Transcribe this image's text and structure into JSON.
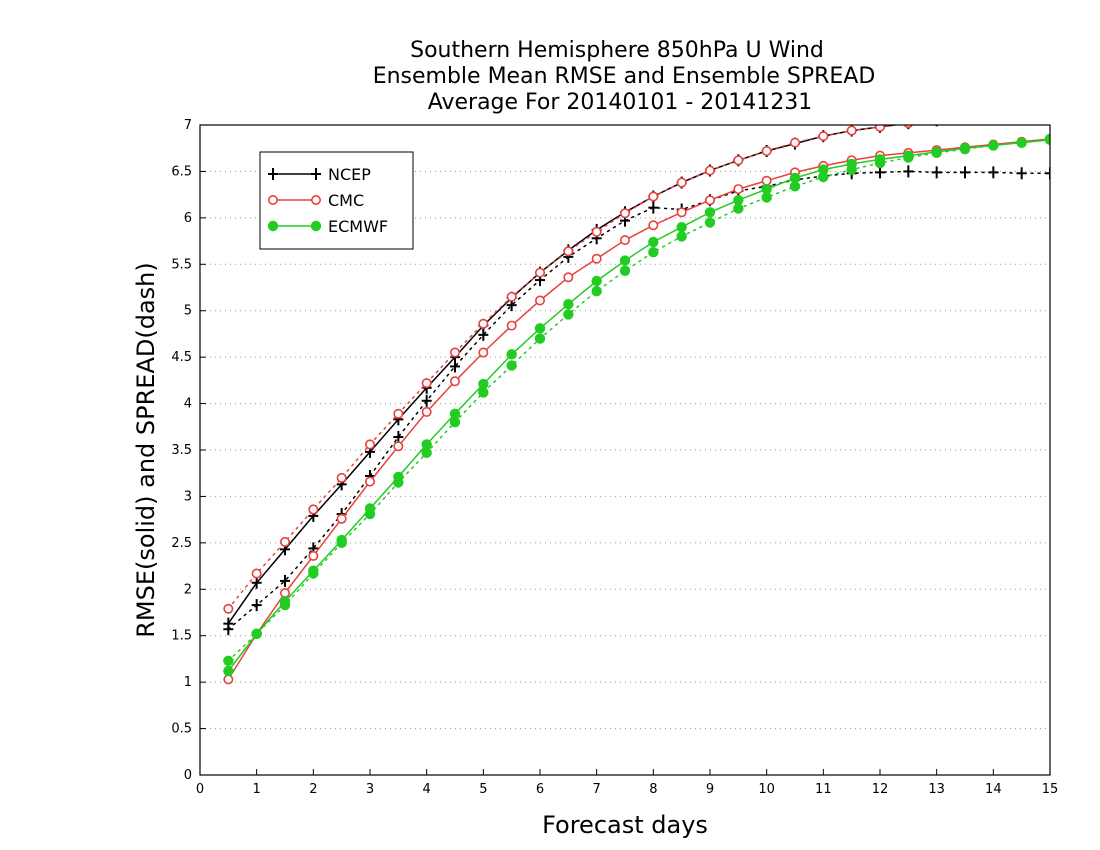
{
  "chart_data": {
    "type": "line",
    "title_lines": [
      "Southern Hemisphere 850hPa U Wind",
      "Ensemble Mean RMSE and Ensemble SPREAD",
      "Average For 20140101 - 20141231"
    ],
    "xlabel": "Forecast days",
    "ylabel": "RMSE(solid) and SPREAD(dash)",
    "xlim": [
      0,
      15
    ],
    "ylim": [
      0,
      7
    ],
    "x_ticks": [
      "0",
      "1",
      "2",
      "3",
      "4",
      "5",
      "6",
      "7",
      "8",
      "9",
      "10",
      "11",
      "12",
      "13",
      "14",
      "15"
    ],
    "y_ticks": [
      "0",
      "0.5",
      "1",
      "1.5",
      "2",
      "2.5",
      "3",
      "3.5",
      "4",
      "4.5",
      "5",
      "5.5",
      "6",
      "6.5",
      "7"
    ],
    "grid": "horizontal dotted",
    "legend_position": "top-left",
    "x": [
      0.5,
      1,
      1.5,
      2,
      2.5,
      3,
      3.5,
      4,
      4.5,
      5,
      5.5,
      6,
      6.5,
      7,
      7.5,
      8,
      8.5,
      9,
      9.5,
      10,
      10.5,
      11,
      11.5,
      12,
      12.5,
      13,
      13.5,
      14,
      14.5,
      15
    ],
    "series": [
      {
        "name": "NCEP",
        "color": "#000000",
        "marker": "plus",
        "rmse": [
          1.63,
          2.07,
          2.43,
          2.79,
          3.13,
          3.48,
          3.83,
          4.17,
          4.5,
          4.84,
          5.14,
          5.41,
          5.65,
          5.87,
          6.06,
          6.23,
          6.38,
          6.51,
          6.62,
          6.72,
          6.8,
          6.88,
          6.94,
          6.98,
          7.02,
          7.05,
          7.08,
          7.1,
          7.12,
          7.14
        ],
        "spread": [
          1.57,
          1.83,
          2.09,
          2.44,
          2.81,
          3.22,
          3.64,
          4.03,
          4.4,
          4.74,
          5.06,
          5.33,
          5.58,
          5.78,
          5.97,
          6.11,
          6.09,
          6.19,
          6.29,
          6.34,
          6.41,
          6.45,
          6.48,
          6.49,
          6.5,
          6.49,
          6.49,
          6.49,
          6.48,
          6.48
        ]
      },
      {
        "name": "CMC",
        "color": "#e8403d",
        "marker": "open-circle",
        "rmse": [
          1.03,
          1.52,
          1.96,
          2.36,
          2.76,
          3.16,
          3.54,
          3.91,
          4.24,
          4.55,
          4.84,
          5.11,
          5.36,
          5.56,
          5.76,
          5.92,
          6.06,
          6.19,
          6.31,
          6.4,
          6.49,
          6.56,
          6.62,
          6.67,
          6.7,
          6.73,
          6.76,
          6.79,
          6.82,
          6.85
        ],
        "spread": [
          1.79,
          2.17,
          2.51,
          2.86,
          3.2,
          3.56,
          3.89,
          4.22,
          4.55,
          4.86,
          5.15,
          5.41,
          5.64,
          5.85,
          6.05,
          6.23,
          6.38,
          6.51,
          6.62,
          6.72,
          6.81,
          6.88,
          6.94,
          6.98,
          7.02,
          7.05,
          7.08,
          7.1,
          7.12,
          7.14
        ]
      },
      {
        "name": "ECMWF",
        "color": "#22cc22",
        "marker": "filled-circle",
        "rmse": [
          1.12,
          1.52,
          1.87,
          2.2,
          2.53,
          2.87,
          3.21,
          3.56,
          3.89,
          4.21,
          4.53,
          4.81,
          5.07,
          5.32,
          5.54,
          5.74,
          5.9,
          6.06,
          6.19,
          6.31,
          6.43,
          6.52,
          6.58,
          6.63,
          6.67,
          6.71,
          6.75,
          6.78,
          6.81,
          6.84
        ],
        "spread": [
          1.23,
          1.52,
          1.83,
          2.17,
          2.5,
          2.81,
          3.15,
          3.47,
          3.8,
          4.12,
          4.41,
          4.7,
          4.96,
          5.21,
          5.43,
          5.63,
          5.8,
          5.95,
          6.1,
          6.22,
          6.34,
          6.44,
          6.52,
          6.59,
          6.65,
          6.7,
          6.74,
          6.78,
          6.81,
          6.85
        ]
      }
    ]
  }
}
